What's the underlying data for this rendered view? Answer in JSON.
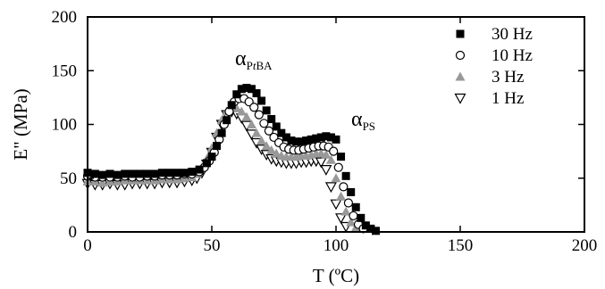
{
  "chart_data": {
    "type": "scatter",
    "xlabel": "T (ºC)",
    "ylabel": "E\" (MPa)",
    "xlim": [
      0,
      200
    ],
    "ylim": [
      0,
      200
    ],
    "xticks": [
      "0",
      "50",
      "100",
      "150",
      "200"
    ],
    "yticks": [
      "0",
      "50",
      "100",
      "150",
      "200"
    ],
    "legend_position": "top-right",
    "grid": false,
    "annotations": [
      {
        "symbol": "α",
        "subscript": "PtBA",
        "x": 59,
        "y": 160
      },
      {
        "symbol": "α",
        "subscript": "PS",
        "x": 109,
        "y": 108
      }
    ],
    "series": [
      {
        "name": "30 Hz",
        "marker": "filled-square",
        "color": "#000000",
        "points": [
          [
            0,
            55
          ],
          [
            3,
            54
          ],
          [
            6,
            53
          ],
          [
            9,
            54
          ],
          [
            12,
            53
          ],
          [
            15,
            54
          ],
          [
            18,
            54
          ],
          [
            21,
            54
          ],
          [
            24,
            54
          ],
          [
            27,
            54
          ],
          [
            30,
            55
          ],
          [
            33,
            55
          ],
          [
            36,
            55
          ],
          [
            39,
            55
          ],
          [
            42,
            56
          ],
          [
            45,
            58
          ],
          [
            48,
            64
          ],
          [
            50,
            70
          ],
          [
            52,
            80
          ],
          [
            54,
            92
          ],
          [
            56,
            104
          ],
          [
            58,
            118
          ],
          [
            60,
            128
          ],
          [
            62,
            133
          ],
          [
            64,
            134
          ],
          [
            66,
            133
          ],
          [
            68,
            129
          ],
          [
            70,
            122
          ],
          [
            72,
            113
          ],
          [
            74,
            105
          ],
          [
            76,
            98
          ],
          [
            78,
            92
          ],
          [
            80,
            88
          ],
          [
            82,
            85
          ],
          [
            84,
            84
          ],
          [
            86,
            84
          ],
          [
            88,
            85
          ],
          [
            90,
            86
          ],
          [
            92,
            87
          ],
          [
            94,
            88
          ],
          [
            96,
            89
          ],
          [
            98,
            88
          ],
          [
            100,
            86
          ],
          [
            102,
            70
          ],
          [
            104,
            52
          ],
          [
            106,
            37
          ],
          [
            108,
            23
          ],
          [
            110,
            13
          ],
          [
            112,
            6
          ],
          [
            114,
            3
          ],
          [
            116,
            1
          ]
        ]
      },
      {
        "name": "10 Hz",
        "marker": "open-circle",
        "color": "#000000",
        "points": [
          [
            0,
            52
          ],
          [
            3,
            51
          ],
          [
            6,
            51
          ],
          [
            9,
            51
          ],
          [
            12,
            51
          ],
          [
            15,
            52
          ],
          [
            18,
            51
          ],
          [
            21,
            51
          ],
          [
            24,
            52
          ],
          [
            27,
            52
          ],
          [
            30,
            53
          ],
          [
            33,
            53
          ],
          [
            36,
            53
          ],
          [
            39,
            54
          ],
          [
            42,
            54
          ],
          [
            45,
            56
          ],
          [
            47,
            60
          ],
          [
            49,
            66
          ],
          [
            51,
            74
          ],
          [
            53,
            86
          ],
          [
            55,
            100
          ],
          [
            57,
            112
          ],
          [
            59,
            121
          ],
          [
            61,
            124
          ],
          [
            63,
            124
          ],
          [
            65,
            121
          ],
          [
            67,
            116
          ],
          [
            69,
            109
          ],
          [
            71,
            101
          ],
          [
            73,
            94
          ],
          [
            75,
            88
          ],
          [
            77,
            83
          ],
          [
            79,
            79
          ],
          [
            81,
            77
          ],
          [
            83,
            76
          ],
          [
            85,
            76
          ],
          [
            87,
            77
          ],
          [
            89,
            78
          ],
          [
            91,
            79
          ],
          [
            93,
            80
          ],
          [
            95,
            80
          ],
          [
            97,
            79
          ],
          [
            99,
            75
          ],
          [
            101,
            60
          ],
          [
            103,
            42
          ],
          [
            105,
            27
          ],
          [
            107,
            15
          ],
          [
            109,
            7
          ],
          [
            111,
            3
          ]
        ]
      },
      {
        "name": "3 Hz",
        "marker": "filled-triangle",
        "color": "#999999",
        "points": [
          [
            0,
            47
          ],
          [
            3,
            47
          ],
          [
            6,
            46
          ],
          [
            9,
            47
          ],
          [
            12,
            47
          ],
          [
            15,
            48
          ],
          [
            18,
            48
          ],
          [
            21,
            48
          ],
          [
            24,
            48
          ],
          [
            27,
            48
          ],
          [
            30,
            49
          ],
          [
            33,
            49
          ],
          [
            36,
            49
          ],
          [
            39,
            50
          ],
          [
            42,
            51
          ],
          [
            44,
            54
          ],
          [
            46,
            60
          ],
          [
            48,
            68
          ],
          [
            50,
            78
          ],
          [
            52,
            92
          ],
          [
            54,
            104
          ],
          [
            56,
            112
          ],
          [
            58,
            115
          ],
          [
            60,
            115
          ],
          [
            62,
            112
          ],
          [
            64,
            107
          ],
          [
            66,
            100
          ],
          [
            68,
            92
          ],
          [
            70,
            85
          ],
          [
            72,
            80
          ],
          [
            74,
            76
          ],
          [
            76,
            73
          ],
          [
            78,
            71
          ],
          [
            80,
            70
          ],
          [
            82,
            70
          ],
          [
            84,
            70
          ],
          [
            86,
            71
          ],
          [
            88,
            71
          ],
          [
            90,
            72
          ],
          [
            92,
            73
          ],
          [
            94,
            73
          ],
          [
            96,
            72
          ],
          [
            98,
            67
          ],
          [
            100,
            50
          ],
          [
            102,
            33
          ],
          [
            104,
            19
          ],
          [
            106,
            9
          ],
          [
            108,
            4
          ]
        ]
      },
      {
        "name": "1 Hz",
        "marker": "open-triangle-down",
        "color": "#000000",
        "points": [
          [
            0,
            45
          ],
          [
            3,
            44
          ],
          [
            6,
            44
          ],
          [
            9,
            45
          ],
          [
            12,
            44
          ],
          [
            15,
            44
          ],
          [
            18,
            45
          ],
          [
            21,
            45
          ],
          [
            24,
            45
          ],
          [
            27,
            45
          ],
          [
            30,
            46
          ],
          [
            33,
            46
          ],
          [
            36,
            46
          ],
          [
            39,
            47
          ],
          [
            42,
            48
          ],
          [
            44,
            50
          ],
          [
            46,
            55
          ],
          [
            48,
            63
          ],
          [
            50,
            74
          ],
          [
            52,
            88
          ],
          [
            54,
            100
          ],
          [
            56,
            109
          ],
          [
            58,
            112
          ],
          [
            60,
            110
          ],
          [
            62,
            106
          ],
          [
            64,
            99
          ],
          [
            66,
            91
          ],
          [
            68,
            83
          ],
          [
            70,
            77
          ],
          [
            72,
            72
          ],
          [
            74,
            68
          ],
          [
            76,
            66
          ],
          [
            78,
            65
          ],
          [
            80,
            64
          ],
          [
            82,
            64
          ],
          [
            84,
            64
          ],
          [
            86,
            65
          ],
          [
            88,
            65
          ],
          [
            90,
            66
          ],
          [
            92,
            66
          ],
          [
            94,
            65
          ],
          [
            96,
            58
          ],
          [
            98,
            42
          ],
          [
            100,
            26
          ],
          [
            102,
            13
          ],
          [
            104,
            5
          ]
        ]
      }
    ]
  }
}
